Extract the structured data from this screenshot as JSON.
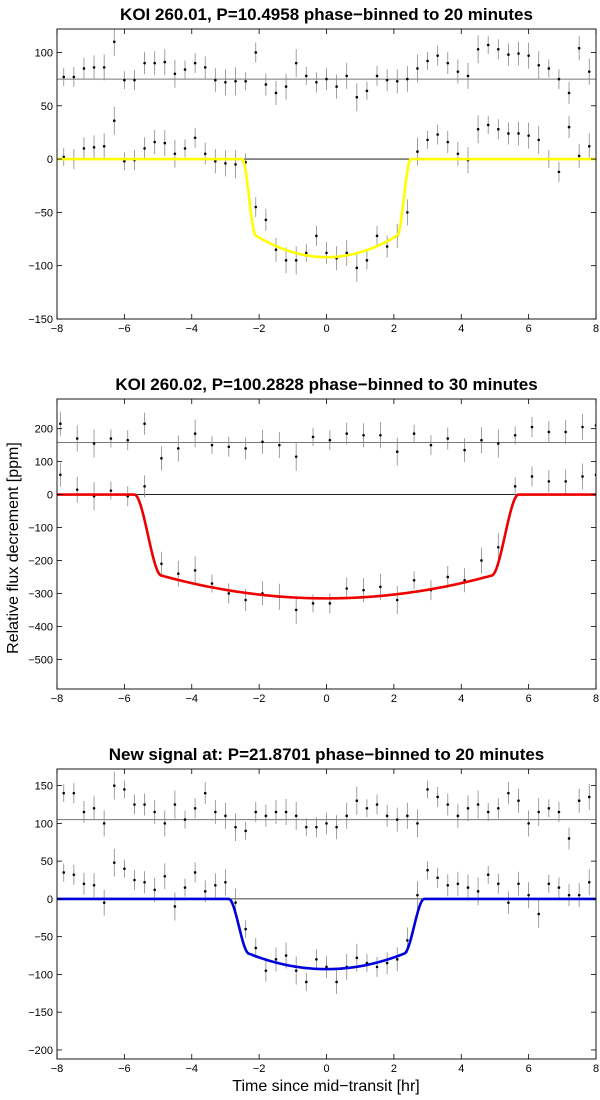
{
  "figure": {
    "shared_ylabel": "Relative flux decrement [ppm]",
    "shared_xlabel": "Time since mid−transit [hr]"
  },
  "chart_data": [
    {
      "type": "scatter",
      "title": "KOI 260.01, P=10.4958 phase−binned to 20 minutes",
      "xlim": [
        -8,
        8
      ],
      "ylim": [
        -150,
        122
      ],
      "xticks": [
        -8,
        -6,
        -4,
        -2,
        0,
        2,
        4,
        6,
        8
      ],
      "yticks": [
        -150,
        -100,
        -50,
        0,
        50,
        100
      ],
      "reference_lines": [
        0,
        75
      ],
      "model_color": "#ffff00",
      "model": {
        "depth": 92,
        "t_start": 2.5,
        "t_full": 2.1
      },
      "series": [
        {
          "role": "binned-data",
          "x": [
            -7.8,
            -7.5,
            -7.2,
            -6.9,
            -6.6,
            -6.3,
            -6.0,
            -5.7,
            -5.4,
            -5.1,
            -4.8,
            -4.5,
            -4.2,
            -3.9,
            -3.6,
            -3.3,
            -3.0,
            -2.7,
            -2.4,
            -2.1,
            -1.8,
            -1.5,
            -1.2,
            -0.9,
            -0.6,
            -0.3,
            0.0,
            0.3,
            0.6,
            0.9,
            1.2,
            1.5,
            1.8,
            2.1,
            2.4,
            2.7,
            3.0,
            3.3,
            3.6,
            3.9,
            4.2,
            4.5,
            4.8,
            5.1,
            5.4,
            5.7,
            6.0,
            6.3,
            6.6,
            6.9,
            7.2,
            7.5,
            7.8
          ],
          "y": [
            2,
            0,
            10,
            11,
            12,
            36,
            -2,
            -1,
            10,
            16,
            15,
            5,
            10,
            20,
            5,
            -2,
            -4,
            -5,
            -3,
            -45,
            -57,
            -85,
            -95,
            -95,
            -88,
            -72,
            -88,
            -93,
            -88,
            -102,
            -95,
            -72,
            -82,
            -72,
            -50,
            7,
            18,
            23,
            16,
            5,
            -1,
            28,
            32,
            28,
            24,
            24,
            22,
            18,
            0,
            -12,
            30,
            3,
            12
          ]
        },
        {
          "role": "offset-data",
          "x": [
            -7.8,
            -7.5,
            -7.2,
            -6.9,
            -6.6,
            -6.3,
            -6.0,
            -5.7,
            -5.4,
            -5.1,
            -4.8,
            -4.5,
            -4.2,
            -3.9,
            -3.6,
            -3.3,
            -3.0,
            -2.7,
            -2.4,
            -2.1,
            -1.8,
            -1.5,
            -1.2,
            -0.9,
            -0.6,
            -0.3,
            0.0,
            0.3,
            0.6,
            0.9,
            1.2,
            1.5,
            1.8,
            2.1,
            2.4,
            2.7,
            3.0,
            3.3,
            3.6,
            3.9,
            4.2,
            4.5,
            4.8,
            5.1,
            5.4,
            5.7,
            6.0,
            6.3,
            6.6,
            6.9,
            7.2,
            7.5,
            7.8
          ],
          "y": [
            77,
            77,
            85,
            86,
            86,
            110,
            74,
            74,
            90,
            90,
            91,
            80,
            84,
            90,
            86,
            74,
            72,
            73,
            73,
            100,
            70,
            62,
            68,
            90,
            78,
            72,
            75,
            68,
            78,
            58,
            64,
            78,
            74,
            73,
            75,
            85,
            92,
            97,
            90,
            82,
            78,
            103,
            107,
            103,
            98,
            99,
            97,
            88,
            85,
            75,
            62,
            104,
            82
          ]
        }
      ]
    },
    {
      "type": "scatter",
      "title": "KOI 260.02, P=100.2828 phase−binned to 30 minutes",
      "xlim": [
        -8,
        8
      ],
      "ylim": [
        -590,
        290
      ],
      "xticks": [
        -8,
        -6,
        -4,
        -2,
        0,
        2,
        4,
        6,
        8
      ],
      "yticks": [
        -500,
        -400,
        -300,
        -200,
        -100,
        0,
        100,
        200
      ],
      "reference_lines": [
        0,
        158
      ],
      "model_color": "#ee0000",
      "model": {
        "depth": 315,
        "t_start": 5.7,
        "t_full": 4.9
      },
      "series": [
        {
          "role": "binned-data",
          "x": [
            -7.9,
            -7.4,
            -6.9,
            -6.4,
            -5.9,
            -5.4,
            -4.9,
            -4.4,
            -3.9,
            -3.4,
            -2.9,
            -2.4,
            -1.9,
            -1.4,
            -0.9,
            -0.4,
            0.1,
            0.6,
            1.1,
            1.6,
            2.1,
            2.6,
            3.1,
            3.6,
            4.1,
            4.6,
            5.1,
            5.6,
            6.1,
            6.6,
            7.1,
            7.6,
            8.0
          ],
          "y": [
            60,
            15,
            -5,
            12,
            -5,
            25,
            -210,
            -240,
            -230,
            -270,
            -300,
            -320,
            -300,
            -310,
            -350,
            -330,
            -330,
            -285,
            -290,
            -280,
            -320,
            -260,
            -290,
            -250,
            -260,
            -200,
            -160,
            25,
            55,
            40,
            40,
            55,
            60
          ]
        },
        {
          "role": "offset-data",
          "x": [
            -7.9,
            -7.4,
            -6.9,
            -6.4,
            -5.9,
            -5.4,
            -4.9,
            -4.4,
            -3.9,
            -3.4,
            -2.9,
            -2.4,
            -1.9,
            -1.4,
            -0.9,
            -0.4,
            0.1,
            0.6,
            1.1,
            1.6,
            2.1,
            2.6,
            3.1,
            3.6,
            4.1,
            4.6,
            5.1,
            5.6,
            6.1,
            6.6,
            7.1,
            7.6,
            8.0
          ],
          "y": [
            215,
            170,
            155,
            170,
            165,
            215,
            110,
            140,
            185,
            150,
            145,
            140,
            160,
            150,
            115,
            175,
            165,
            185,
            180,
            180,
            130,
            185,
            150,
            170,
            135,
            165,
            155,
            180,
            205,
            190,
            190,
            205,
            210
          ]
        }
      ]
    },
    {
      "type": "scatter",
      "title": "New signal at: P=21.8701 phase−binned to 20 minutes",
      "xlim": [
        -8,
        8
      ],
      "ylim": [
        -212,
        172
      ],
      "xticks": [
        -8,
        -6,
        -4,
        -2,
        0,
        2,
        4,
        6,
        8
      ],
      "yticks": [
        -200,
        -150,
        -100,
        -50,
        0,
        50,
        100,
        150
      ],
      "reference_lines": [
        0,
        105
      ],
      "model_color": "#0000dd",
      "model": {
        "depth": 93,
        "t_start": 2.9,
        "t_full": 2.3
      },
      "series": [
        {
          "role": "binned-data",
          "x": [
            -7.8,
            -7.5,
            -7.2,
            -6.9,
            -6.6,
            -6.3,
            -6.0,
            -5.7,
            -5.4,
            -5.1,
            -4.8,
            -4.5,
            -4.2,
            -3.9,
            -3.6,
            -3.3,
            -3.0,
            -2.7,
            -2.4,
            -2.1,
            -1.8,
            -1.5,
            -1.2,
            -0.9,
            -0.6,
            -0.3,
            0.0,
            0.3,
            0.6,
            0.9,
            1.2,
            1.5,
            1.8,
            2.1,
            2.4,
            2.7,
            3.0,
            3.3,
            3.6,
            3.9,
            4.2,
            4.5,
            4.8,
            5.1,
            5.4,
            5.7,
            6.0,
            6.3,
            6.6,
            6.9,
            7.2,
            7.5,
            7.8
          ],
          "y": [
            35,
            32,
            20,
            18,
            -5,
            48,
            40,
            25,
            22,
            12,
            30,
            -10,
            15,
            35,
            10,
            18,
            22,
            -5,
            -40,
            -65,
            -95,
            -80,
            -75,
            -95,
            -110,
            -80,
            -90,
            -110,
            -90,
            -78,
            -85,
            -90,
            -85,
            -80,
            -55,
            5,
            38,
            28,
            18,
            20,
            15,
            10,
            32,
            20,
            -5,
            20,
            5,
            -20,
            20,
            15,
            5,
            5,
            22
          ]
        },
        {
          "role": "offset-data",
          "x": [
            -7.8,
            -7.5,
            -7.2,
            -6.9,
            -6.6,
            -6.3,
            -6.0,
            -5.7,
            -5.4,
            -5.1,
            -4.8,
            -4.5,
            -4.2,
            -3.9,
            -3.6,
            -3.3,
            -3.0,
            -2.7,
            -2.4,
            -2.1,
            -1.8,
            -1.5,
            -1.2,
            -0.9,
            -0.6,
            -0.3,
            0.0,
            0.3,
            0.6,
            0.9,
            1.2,
            1.5,
            1.8,
            2.1,
            2.4,
            2.7,
            3.0,
            3.3,
            3.6,
            3.9,
            4.2,
            4.5,
            4.8,
            5.1,
            5.4,
            5.7,
            6.0,
            6.3,
            6.6,
            6.9,
            7.2,
            7.5,
            7.8
          ],
          "y": [
            140,
            140,
            115,
            120,
            100,
            150,
            145,
            125,
            125,
            115,
            100,
            125,
            105,
            120,
            140,
            115,
            110,
            95,
            90,
            115,
            110,
            115,
            115,
            110,
            95,
            95,
            100,
            95,
            110,
            130,
            120,
            125,
            110,
            105,
            110,
            100,
            145,
            135,
            125,
            110,
            120,
            125,
            115,
            120,
            140,
            130,
            100,
            115,
            120,
            115,
            80,
            130,
            135
          ]
        }
      ]
    }
  ]
}
